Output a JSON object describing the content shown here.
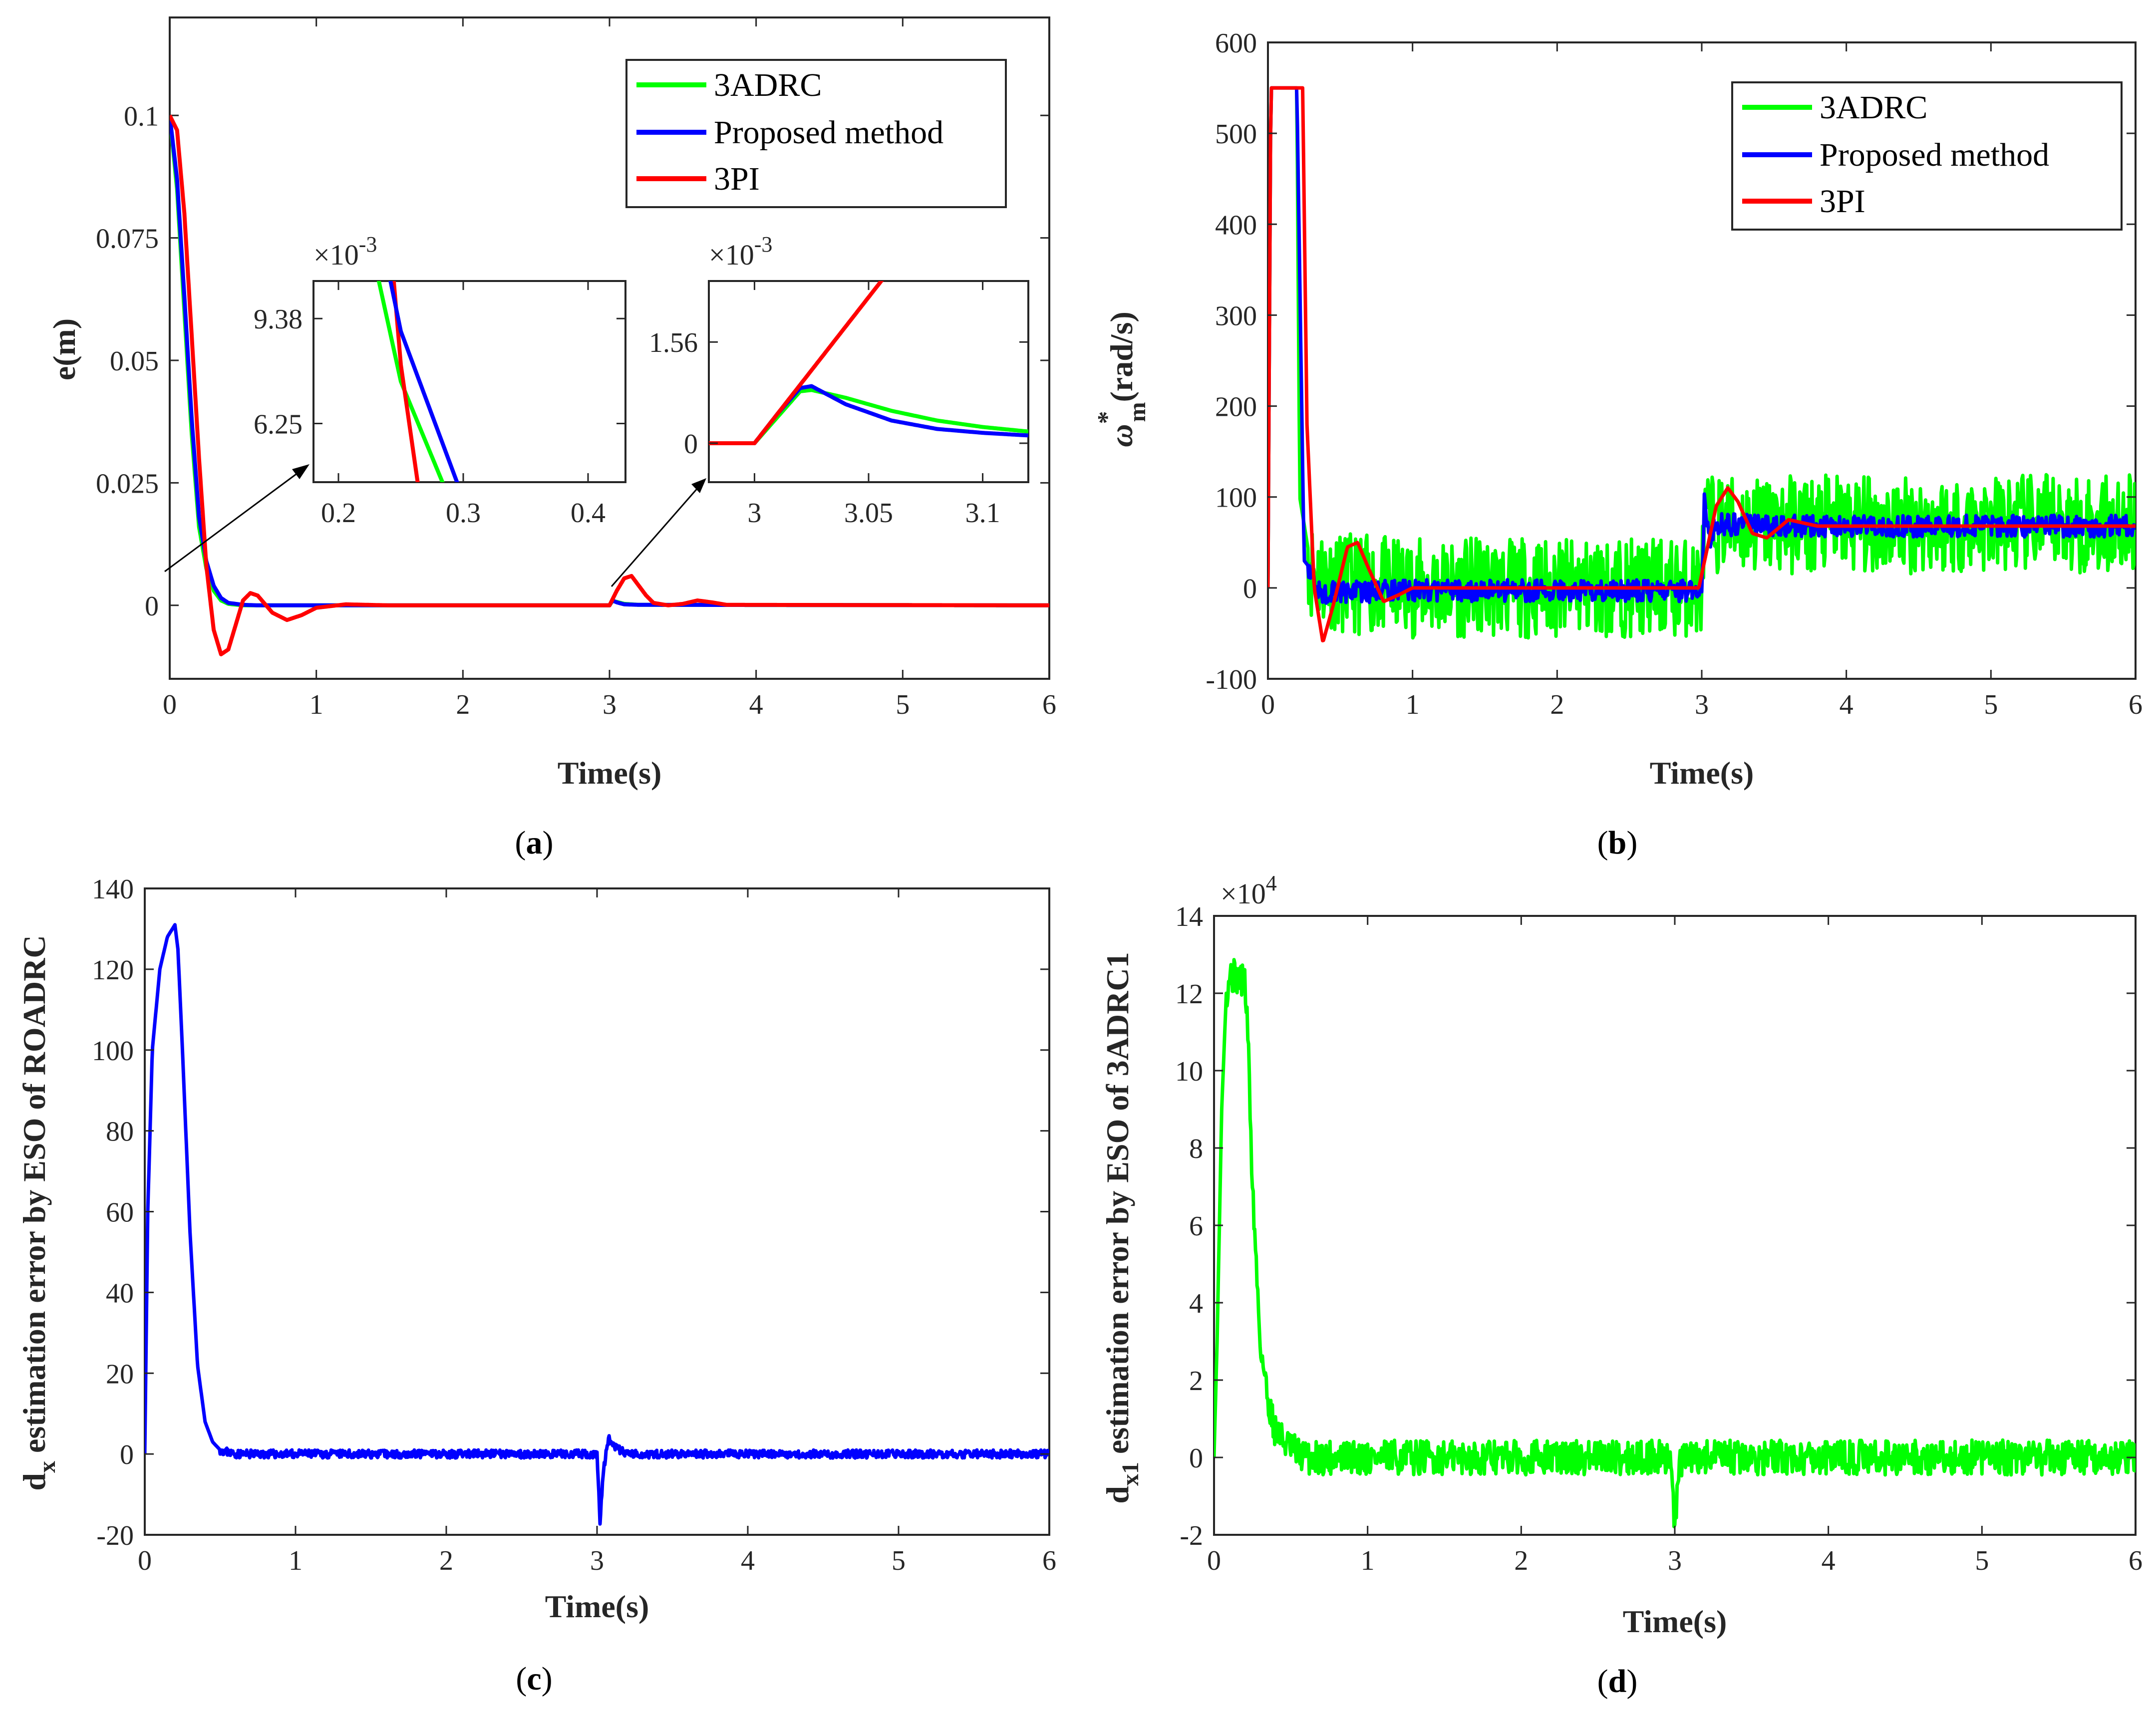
{
  "colors": {
    "green": "#00FF00",
    "blue": "#0000FF",
    "red": "#FF0000",
    "axis": "#262626"
  },
  "panels": {
    "a": {
      "caption": "a",
      "xlabel": "Time(s)",
      "ylabel": "e(m)",
      "xticks": [
        "0",
        "1",
        "2",
        "3",
        "4",
        "5",
        "6"
      ],
      "yticks": [
        "0",
        "0.025",
        "0.05",
        "0.075",
        "0.1"
      ],
      "legend": [
        "3ADRC",
        "Proposed method",
        "3PI"
      ],
      "inset1": {
        "multiplier": "×10",
        "exponent": "-3",
        "xticks": [
          "0.2",
          "0.3",
          "0.4"
        ],
        "yticks": [
          "6.25",
          "9.38"
        ]
      },
      "inset2": {
        "multiplier": "×10",
        "exponent": "-3",
        "xticks": [
          "3",
          "3.05",
          "3.1"
        ],
        "yticks": [
          "0",
          "1.56"
        ]
      }
    },
    "b": {
      "caption": "b",
      "xlabel": "Time(s)",
      "ylabel_symbol": "ω",
      "ylabel_sup": "*",
      "ylabel_sub": "m",
      "ylabel_unit": "(rad/s)",
      "xticks": [
        "0",
        "1",
        "2",
        "3",
        "4",
        "5",
        "6"
      ],
      "yticks": [
        "-100",
        "0",
        "100",
        "200",
        "300",
        "400",
        "500",
        "600"
      ],
      "legend": [
        "3ADRC",
        "Proposed method",
        "3PI"
      ]
    },
    "c": {
      "caption": "c",
      "xlabel": "Time(s)",
      "ylabel_main": "d",
      "ylabel_sub": "x",
      "ylabel_rest": " estimation error by ESO of ROADRC",
      "xticks": [
        "0",
        "1",
        "2",
        "3",
        "4",
        "5",
        "6"
      ],
      "yticks": [
        "-20",
        "0",
        "20",
        "40",
        "60",
        "80",
        "100",
        "120",
        "140"
      ]
    },
    "d": {
      "caption": "d",
      "xlabel": "Time(s)",
      "ylabel_main": "d",
      "ylabel_sub": "x1",
      "ylabel_rest": " estimation error by ESO of  3ADRC1",
      "multiplier": "×10",
      "exponent": "4",
      "xticks": [
        "0",
        "1",
        "2",
        "3",
        "4",
        "5",
        "6"
      ],
      "yticks": [
        "-2",
        "0",
        "2",
        "4",
        "6",
        "8",
        "10",
        "12",
        "14"
      ]
    }
  },
  "chart_data": [
    {
      "type": "line",
      "panel": "a",
      "xlabel": "Time(s)",
      "ylabel": "e(m)",
      "xlim": [
        0,
        6
      ],
      "ylim": [
        -0.015,
        0.12
      ],
      "series": [
        {
          "name": "3ADRC",
          "color": "#00FF00",
          "x": [
            0,
            0.05,
            0.1,
            0.15,
            0.2,
            0.25,
            0.3,
            0.35,
            0.4,
            0.5,
            0.6,
            1.0,
            3.0,
            3.02,
            3.05,
            3.1,
            3.2,
            6.0
          ],
          "y": [
            0.1,
            0.085,
            0.06,
            0.035,
            0.016,
            0.0075,
            0.003,
            0.001,
            0.0003,
            0,
            0,
            0,
            0,
            0.0009,
            0.0007,
            0.0003,
            0.0001,
            0
          ]
        },
        {
          "name": "Proposed method",
          "color": "#0000FF",
          "x": [
            0,
            0.05,
            0.1,
            0.15,
            0.2,
            0.25,
            0.3,
            0.35,
            0.4,
            0.5,
            0.6,
            1.0,
            3.0,
            3.02,
            3.05,
            3.1,
            3.2,
            6.0
          ],
          "y": [
            0.1,
            0.087,
            0.063,
            0.038,
            0.018,
            0.009,
            0.004,
            0.0015,
            0.0005,
            0.0001,
            0,
            0,
            0,
            0.001,
            0.0006,
            0.0002,
            0.0001,
            0
          ]
        },
        {
          "name": "3PI",
          "color": "#FF0000",
          "x": [
            0,
            0.05,
            0.1,
            0.15,
            0.2,
            0.25,
            0.3,
            0.35,
            0.4,
            0.45,
            0.5,
            0.55,
            0.6,
            0.7,
            0.8,
            0.9,
            1.0,
            1.2,
            1.5,
            3.0,
            3.05,
            3.1,
            3.15,
            3.2,
            3.25,
            3.3,
            3.4,
            3.5,
            3.6,
            3.7,
            3.8,
            6.0
          ],
          "y": [
            0.1,
            0.097,
            0.08,
            0.055,
            0.03,
            0.008,
            -0.005,
            -0.01,
            -0.009,
            -0.004,
            0.001,
            0.0025,
            0.002,
            -0.0015,
            -0.003,
            -0.002,
            -0.0005,
            0.0002,
            0,
            0,
            0.003,
            0.0055,
            0.006,
            0.004,
            0.002,
            0.0005,
            0,
            0.0003,
            0.001,
            0.0006,
            0.0001,
            0
          ]
        }
      ],
      "insets": [
        {
          "xlim": [
            0.18,
            0.43
          ],
          "ylim": [
            0.0045,
            0.0105
          ],
          "yticks": [
            0.00625,
            0.00938
          ],
          "xticks": [
            0.2,
            0.3,
            0.4
          ],
          "note": "zoom near t=0.25"
        },
        {
          "xlim": [
            2.98,
            3.12
          ],
          "ylim": [
            -0.0006,
            0.0025
          ],
          "yticks": [
            0,
            0.00156
          ],
          "xticks": [
            3,
            3.05,
            3.1
          ],
          "note": "zoom near t=3"
        }
      ]
    },
    {
      "type": "line",
      "panel": "b",
      "xlabel": "Time(s)",
      "ylabel": "ω*m (rad/s)",
      "xlim": [
        0,
        6
      ],
      "ylim": [
        -100,
        600
      ],
      "series": [
        {
          "name": "3ADRC",
          "color": "#00FF00",
          "noise": 55,
          "x": [
            0,
            0.02,
            0.2,
            0.22,
            0.3,
            0.5,
            1.0,
            2.0,
            2.98,
            3.0,
            3.02,
            3.5,
            6.0
          ],
          "y": [
            0,
            550,
            550,
            100,
            20,
            5,
            0,
            0,
            0,
            0,
            70,
            70,
            70
          ]
        },
        {
          "name": "Proposed method",
          "color": "#0000FF",
          "noise": 12,
          "x": [
            0,
            0.02,
            0.2,
            0.25,
            0.3,
            0.35,
            0.5,
            1.0,
            2.98,
            3.0,
            3.02,
            3.05,
            3.1,
            3.5,
            6.0
          ],
          "y": [
            0,
            550,
            550,
            30,
            20,
            -5,
            -5,
            -3,
            -3,
            -3,
            110,
            50,
            70,
            68,
            68
          ]
        },
        {
          "name": "3PI",
          "color": "#FF0000",
          "noise": 0,
          "x": [
            0,
            0.02,
            0.24,
            0.27,
            0.32,
            0.38,
            0.45,
            0.55,
            0.62,
            0.7,
            0.8,
            0.9,
            1.0,
            1.2,
            2.98,
            3.02,
            3.1,
            3.18,
            3.25,
            3.35,
            3.45,
            3.6,
            3.8,
            6.0
          ],
          "y": [
            0,
            550,
            550,
            180,
            0,
            -60,
            -20,
            45,
            50,
            20,
            -15,
            -8,
            0,
            0,
            0,
            30,
            90,
            110,
            95,
            60,
            55,
            75,
            68,
            68
          ]
        }
      ]
    },
    {
      "type": "line",
      "panel": "c",
      "xlabel": "Time(s)",
      "ylabel": "dx estimation error by ESO of ROADRC",
      "xlim": [
        0,
        6
      ],
      "ylim": [
        -20,
        140
      ],
      "series": [
        {
          "name": "ROADRC",
          "color": "#0000FF",
          "noise": 1,
          "x": [
            0,
            0.02,
            0.05,
            0.1,
            0.15,
            0.2,
            0.22,
            0.25,
            0.3,
            0.35,
            0.4,
            0.45,
            0.5,
            0.6,
            3.0,
            3.02,
            3.04,
            3.06,
            3.08,
            3.1,
            3.2,
            6.0
          ],
          "y": [
            0,
            60,
            100,
            120,
            128,
            131,
            125,
            100,
            55,
            22,
            8,
            3,
            1,
            0,
            0,
            -17,
            -5,
            0,
            4,
            2,
            0,
            0
          ]
        }
      ]
    },
    {
      "type": "line",
      "panel": "d",
      "xlabel": "Time(s)",
      "ylabel": "dx1 estimation error by ESO of 3ADRC1",
      "ylabel_multiplier": "×10^4",
      "xlim": [
        0,
        6
      ],
      "ylim": [
        -2,
        14
      ],
      "series": [
        {
          "name": "3ADRC1",
          "color": "#00FF00",
          "noise": 0.45,
          "x": [
            0,
            0.02,
            0.05,
            0.08,
            0.1,
            0.2,
            0.22,
            0.25,
            0.3,
            0.35,
            0.4,
            0.5,
            0.6,
            2.98,
            3.0,
            3.02,
            3.05,
            6.0
          ],
          "y": [
            0,
            3,
            9,
            12,
            12.5,
            12.3,
            11,
            7,
            3,
            1.5,
            0.7,
            0.2,
            0,
            0,
            -2,
            -0.5,
            0,
            0
          ]
        }
      ]
    }
  ]
}
